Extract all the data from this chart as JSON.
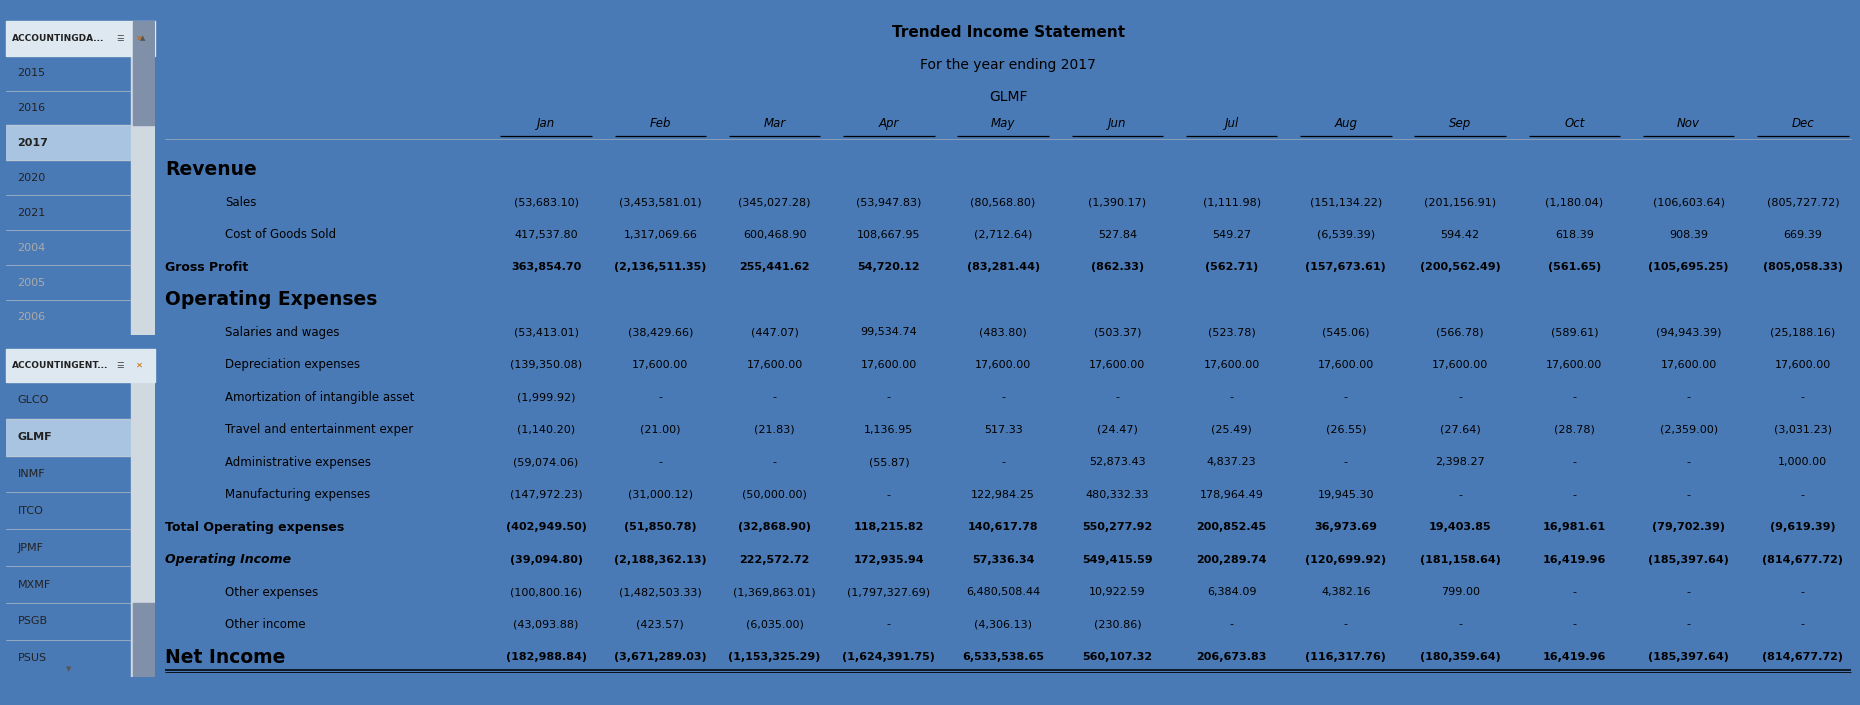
{
  "title1": "Trended Income Statement",
  "title2": "For the year ending 2017",
  "title3": "GLMF",
  "columns": [
    "Jan",
    "Feb",
    "Mar",
    "Apr",
    "May",
    "Jun",
    "Jul",
    "Aug",
    "Sep",
    "Oct",
    "Nov",
    "Dec"
  ],
  "rows": [
    {
      "label": "Revenue",
      "level": 0,
      "bold": true,
      "large": true,
      "italic": false,
      "values": null,
      "underline": false,
      "top_line": false
    },
    {
      "label": "Sales",
      "level": 1,
      "bold": false,
      "large": false,
      "italic": false,
      "values": [
        "(53,683.10)",
        "(3,453,581.01)",
        "(345,027.28)",
        "(53,947.83)",
        "(80,568.80)",
        "(1,390.17)",
        "(1,111.98)",
        "(151,134.22)",
        "(201,156.91)",
        "(1,180.04)",
        "(106,603.64)",
        "(805,727.72)"
      ],
      "underline": false,
      "top_line": false
    },
    {
      "label": "Cost of Goods Sold",
      "level": 1,
      "bold": false,
      "large": false,
      "italic": false,
      "values": [
        "417,537.80",
        "1,317,069.66",
        "600,468.90",
        "108,667.95",
        "(2,712.64)",
        "527.84",
        "549.27",
        "(6,539.39)",
        "594.42",
        "618.39",
        "908.39",
        "669.39"
      ],
      "underline": false,
      "top_line": false
    },
    {
      "label": "Gross Profit",
      "level": 0,
      "bold": true,
      "large": false,
      "italic": false,
      "values": [
        "363,854.70",
        "(2,136,511.35)",
        "255,441.62",
        "54,720.12",
        "(83,281.44)",
        "(862.33)",
        "(562.71)",
        "(157,673.61)",
        "(200,562.49)",
        "(561.65)",
        "(105,695.25)",
        "(805,058.33)"
      ],
      "underline": false,
      "top_line": false
    },
    {
      "label": "Operating Expenses",
      "level": 0,
      "bold": true,
      "large": true,
      "italic": false,
      "values": null,
      "underline": false,
      "top_line": false
    },
    {
      "label": "Salaries and wages",
      "level": 1,
      "bold": false,
      "large": false,
      "italic": false,
      "values": [
        "(53,413.01)",
        "(38,429.66)",
        "(447.07)",
        "99,534.74",
        "(483.80)",
        "(503.37)",
        "(523.78)",
        "(545.06)",
        "(566.78)",
        "(589.61)",
        "(94,943.39)",
        "(25,188.16)"
      ],
      "underline": false,
      "top_line": false
    },
    {
      "label": "Depreciation expenses",
      "level": 1,
      "bold": false,
      "large": false,
      "italic": false,
      "values": [
        "(139,350.08)",
        "17,600.00",
        "17,600.00",
        "17,600.00",
        "17,600.00",
        "17,600.00",
        "17,600.00",
        "17,600.00",
        "17,600.00",
        "17,600.00",
        "17,600.00",
        "17,600.00"
      ],
      "underline": false,
      "top_line": false
    },
    {
      "label": "Amortization of intangible asset",
      "level": 1,
      "bold": false,
      "large": false,
      "italic": false,
      "values": [
        "(1,999.92)",
        "-",
        "-",
        "-",
        "-",
        "-",
        "-",
        "-",
        "-",
        "-",
        "-",
        "-"
      ],
      "underline": false,
      "top_line": false
    },
    {
      "label": "Travel and entertainment exper",
      "level": 1,
      "bold": false,
      "large": false,
      "italic": false,
      "values": [
        "(1,140.20)",
        "(21.00)",
        "(21.83)",
        "1,136.95",
        "517.33",
        "(24.47)",
        "(25.49)",
        "(26.55)",
        "(27.64)",
        "(28.78)",
        "(2,359.00)",
        "(3,031.23)"
      ],
      "underline": false,
      "top_line": false
    },
    {
      "label": "Administrative expenses",
      "level": 1,
      "bold": false,
      "large": false,
      "italic": false,
      "values": [
        "(59,074.06)",
        "-",
        "-",
        "(55.87)",
        "-",
        "52,873.43",
        "4,837.23",
        "-",
        "2,398.27",
        "-",
        "-",
        "1,000.00"
      ],
      "underline": false,
      "top_line": false
    },
    {
      "label": "Manufacturing expenses",
      "level": 1,
      "bold": false,
      "large": false,
      "italic": false,
      "values": [
        "(147,972.23)",
        "(31,000.12)",
        "(50,000.00)",
        "-",
        "122,984.25",
        "480,332.33",
        "178,964.49",
        "19,945.30",
        "-",
        "-",
        "-",
        "-"
      ],
      "underline": false,
      "top_line": false
    },
    {
      "label": "Total Operating expenses",
      "level": 0,
      "bold": true,
      "large": false,
      "italic": false,
      "values": [
        "(402,949.50)",
        "(51,850.78)",
        "(32,868.90)",
        "118,215.82",
        "140,617.78",
        "550,277.92",
        "200,852.45",
        "36,973.69",
        "19,403.85",
        "16,981.61",
        "(79,702.39)",
        "(9,619.39)"
      ],
      "underline": false,
      "top_line": false
    },
    {
      "label": "Operating Income",
      "level": 0,
      "bold": true,
      "large": false,
      "italic": true,
      "values": [
        "(39,094.80)",
        "(2,188,362.13)",
        "222,572.72",
        "172,935.94",
        "57,336.34",
        "549,415.59",
        "200,289.74",
        "(120,699.92)",
        "(181,158.64)",
        "16,419.96",
        "(185,397.64)",
        "(814,677.72)"
      ],
      "underline": false,
      "top_line": false
    },
    {
      "label": "Other expenses",
      "level": 1,
      "bold": false,
      "large": false,
      "italic": false,
      "values": [
        "(100,800.16)",
        "(1,482,503.33)",
        "(1,369,863.01)",
        "(1,797,327.69)",
        "6,480,508.44",
        "10,922.59",
        "6,384.09",
        "4,382.16",
        "799.00",
        "-",
        "-",
        "-"
      ],
      "underline": false,
      "top_line": false
    },
    {
      "label": "Other income",
      "level": 1,
      "bold": false,
      "large": false,
      "italic": false,
      "values": [
        "(43,093.88)",
        "(423.57)",
        "(6,035.00)",
        "-",
        "(4,306.13)",
        "(230.86)",
        "-",
        "-",
        "-",
        "-",
        "-",
        "-"
      ],
      "underline": false,
      "top_line": false
    },
    {
      "label": "Net Income",
      "level": 0,
      "bold": true,
      "large": true,
      "italic": false,
      "values": [
        "(182,988.84)",
        "(3,671,289.03)",
        "(1,153,325.29)",
        "(1,624,391.75)",
        "6,533,538.65",
        "560,107.32",
        "206,673.83",
        "(116,317.76)",
        "(180,359.64)",
        "16,419.96",
        "(185,397.64)",
        "(814,677.72)"
      ],
      "underline": true,
      "top_line": false
    }
  ],
  "left_panel_top_title": "ACCOUNTINGDA...",
  "left_panel_top_items": [
    "2015",
    "2016",
    "2017",
    "2020",
    "2021",
    "2004",
    "2005",
    "2006"
  ],
  "left_panel_bottom_title": "ACCOUNTINGENT...",
  "left_panel_bottom_items": [
    "GLCO",
    "GLMF",
    "INMF",
    "ITCO",
    "JPMF",
    "MXMF",
    "PSGB",
    "PSUS"
  ],
  "selected_top": "2017",
  "selected_bottom": "GLMF",
  "bg_color": "#4a7ab5",
  "panel_bg_color": "#ffffff",
  "panel_header_color": "#dde8f0",
  "table_bg": "#ffffff",
  "selected_color": "#a8c4e0",
  "selected_text_color": "#000000",
  "grayed_color": "#aaaaaa",
  "normal_item_color": "#222222",
  "title_color": "#000000",
  "col_header_color": "#000000",
  "body_color": "#000000"
}
